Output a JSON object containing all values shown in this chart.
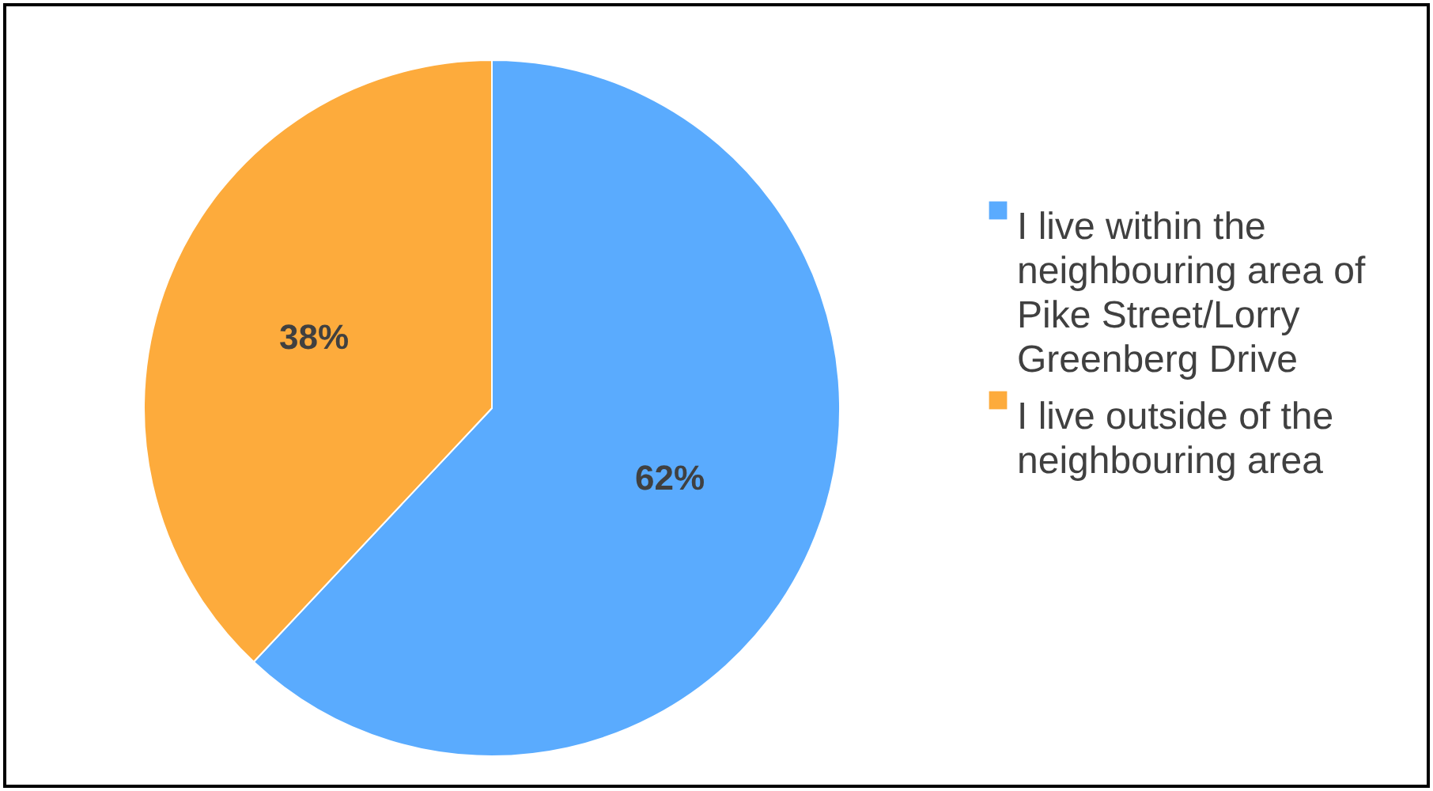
{
  "chart_data": {
    "type": "pie",
    "categories": [
      "I live within the neighbouring area of Pike Street/Lorry Greenberg Drive",
      "I live outside of the neighbouring area"
    ],
    "values": [
      62,
      38
    ],
    "colors": [
      "#5aabfe",
      "#fdab3c"
    ],
    "value_labels": [
      "62%",
      "38%"
    ],
    "legend": "right"
  }
}
